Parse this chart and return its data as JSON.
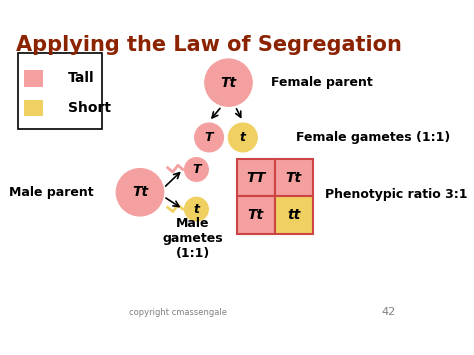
{
  "title": "Applying the Law of Segregation",
  "title_color": "#8B2200",
  "title_fontsize": 15,
  "bg_color": "#FFFFFF",
  "pink_color": "#F4A0A0",
  "yellow_color": "#F0D060",
  "text_color": "#000000",
  "dark_red": "#8B2200",
  "grid_stroke": "#CC6666",
  "legend_tall": "Tall",
  "legend_short": "Short",
  "female_parent_label": "Female parent",
  "female_gametes_label": "Female gametes (1:1)",
  "male_parent_label": "Male parent",
  "male_gametes_label": "Male\ngametes\n(1:1)",
  "phenotypic_label": "Phenotypic ratio 3:1",
  "copyright": "copyright cmassengale",
  "page_num": "42",
  "cells": [
    [
      "TT",
      "Tt"
    ],
    [
      "Tt",
      "tt"
    ]
  ],
  "cell_colors": [
    [
      "pink",
      "pink"
    ],
    [
      "pink",
      "yellow"
    ]
  ]
}
